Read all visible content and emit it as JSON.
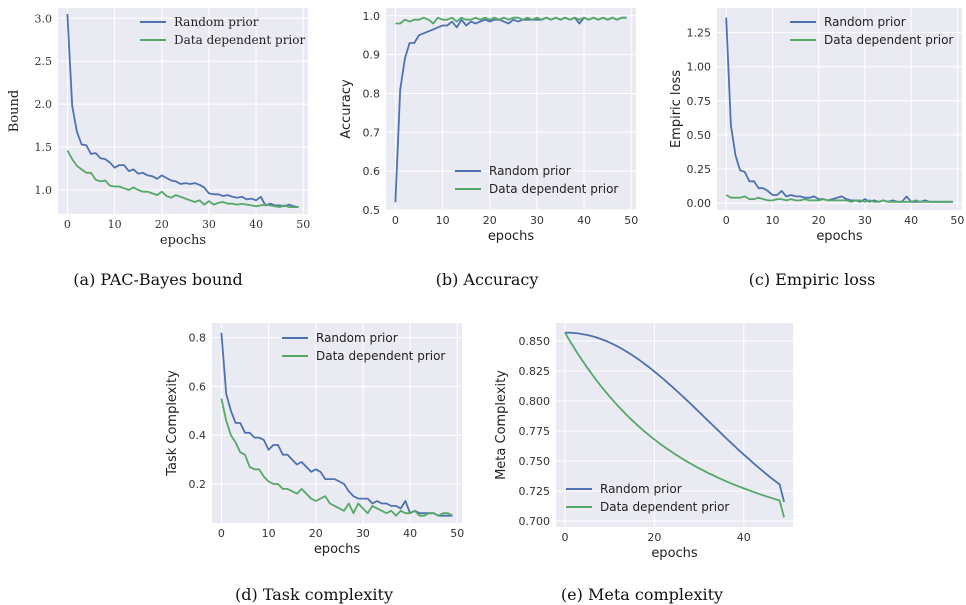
{
  "colors": {
    "random": "#4c72b0",
    "data_dependent": "#55a868",
    "panel_bg": "#eaeaf2",
    "grid": "#ffffff"
  },
  "chart_data": [
    {
      "id": "a",
      "type": "line",
      "caption": "(a) PAC-Bayes bound",
      "xlabel": "epochs",
      "ylabel": "Bound",
      "xlim": [
        -2,
        51
      ],
      "ylim": [
        0.72,
        3.12
      ],
      "xticks": [
        0,
        10,
        20,
        30,
        40,
        50
      ],
      "yticks": [
        1.0,
        1.5,
        2.0,
        2.5,
        3.0
      ],
      "ytick_labels": [
        "1.0",
        "1.5",
        "2.0",
        "2.5",
        "3.0"
      ],
      "legend": "upper-right",
      "series": [
        {
          "name": "Random prior",
          "color_key": "random",
          "values": [
            3.05,
            1.98,
            1.68,
            1.53,
            1.52,
            1.42,
            1.43,
            1.37,
            1.36,
            1.32,
            1.26,
            1.29,
            1.29,
            1.22,
            1.24,
            1.19,
            1.2,
            1.17,
            1.16,
            1.13,
            1.17,
            1.14,
            1.11,
            1.1,
            1.07,
            1.08,
            1.07,
            1.08,
            1.06,
            1.03,
            0.96,
            0.95,
            0.95,
            0.93,
            0.94,
            0.92,
            0.91,
            0.92,
            0.89,
            0.9,
            0.88,
            0.92,
            0.82,
            0.84,
            0.82,
            0.82,
            0.81,
            0.83,
            0.81,
            0.8
          ]
        },
        {
          "name": "Data dependent prior",
          "color_key": "data_dependent",
          "values": [
            1.46,
            1.36,
            1.28,
            1.24,
            1.2,
            1.2,
            1.12,
            1.1,
            1.11,
            1.05,
            1.04,
            1.04,
            1.02,
            1.0,
            1.03,
            1.0,
            0.98,
            0.98,
            0.96,
            0.94,
            0.98,
            0.93,
            0.91,
            0.94,
            0.92,
            0.9,
            0.88,
            0.86,
            0.88,
            0.83,
            0.87,
            0.83,
            0.85,
            0.86,
            0.84,
            0.84,
            0.83,
            0.84,
            0.83,
            0.82,
            0.81,
            0.82,
            0.83,
            0.82,
            0.81,
            0.8,
            0.82,
            0.8,
            0.8,
            0.8
          ]
        }
      ]
    },
    {
      "id": "b",
      "type": "line",
      "caption": "(b) Accuracy",
      "xlabel": "epochs",
      "ylabel": "Accuracy",
      "xlim": [
        -2,
        51
      ],
      "ylim": [
        0.5,
        1.02
      ],
      "xticks": [
        0,
        10,
        20,
        30,
        40,
        50
      ],
      "yticks": [
        0.5,
        0.6,
        0.7,
        0.8,
        0.9,
        1.0
      ],
      "ytick_labels": [
        "0.5",
        "0.6",
        "0.7",
        "0.8",
        "0.9",
        "1.0"
      ],
      "legend": "lower-right",
      "series": [
        {
          "name": "Random prior",
          "color_key": "random",
          "values": [
            0.52,
            0.81,
            0.89,
            0.93,
            0.93,
            0.95,
            0.955,
            0.96,
            0.965,
            0.97,
            0.975,
            0.975,
            0.985,
            0.97,
            0.99,
            0.975,
            0.985,
            0.98,
            0.985,
            0.99,
            0.985,
            0.99,
            0.99,
            0.985,
            0.98,
            0.99,
            0.985,
            0.99,
            0.99,
            0.99,
            0.99,
            0.99,
            0.995,
            0.99,
            0.995,
            0.99,
            0.995,
            0.99,
            0.995,
            0.98,
            0.995,
            0.99,
            0.995,
            0.99,
            0.995,
            0.99,
            0.995,
            0.99,
            0.995,
            0.995
          ]
        },
        {
          "name": "Data dependent prior",
          "color_key": "data_dependent",
          "values": [
            0.98,
            0.98,
            0.99,
            0.985,
            0.99,
            0.99,
            0.995,
            0.99,
            0.98,
            0.995,
            0.99,
            0.99,
            0.995,
            0.985,
            0.995,
            0.99,
            0.99,
            0.995,
            0.99,
            0.995,
            0.99,
            0.995,
            0.99,
            0.995,
            0.99,
            0.995,
            0.995,
            0.99,
            0.995,
            0.99,
            0.995,
            0.99,
            0.995,
            0.99,
            0.995,
            0.99,
            0.995,
            0.99,
            0.995,
            0.99,
            0.995,
            0.99,
            0.995,
            0.99,
            0.995,
            0.99,
            0.995,
            0.99,
            0.995,
            0.995
          ]
        }
      ]
    },
    {
      "id": "c",
      "type": "line",
      "caption": "(c) Empiric loss",
      "xlabel": "epochs",
      "ylabel": "Empiric loss",
      "xlim": [
        -2,
        51
      ],
      "ylim": [
        -0.05,
        1.43
      ],
      "xticks": [
        0,
        10,
        20,
        30,
        40,
        50
      ],
      "yticks": [
        0.0,
        0.25,
        0.5,
        0.75,
        1.0,
        1.25
      ],
      "ytick_labels": [
        "0.00",
        "0.25",
        "0.50",
        "0.75",
        "1.00",
        "1.25"
      ],
      "legend": "upper-right",
      "series": [
        {
          "name": "Random prior",
          "color_key": "random",
          "values": [
            1.36,
            0.57,
            0.35,
            0.24,
            0.23,
            0.16,
            0.16,
            0.11,
            0.11,
            0.09,
            0.06,
            0.06,
            0.09,
            0.05,
            0.06,
            0.05,
            0.05,
            0.04,
            0.04,
            0.05,
            0.03,
            0.03,
            0.02,
            0.03,
            0.04,
            0.05,
            0.03,
            0.02,
            0.02,
            0.01,
            0.03,
            0.01,
            0.02,
            0.01,
            0.02,
            0.01,
            0.02,
            0.01,
            0.01,
            0.05,
            0.01,
            0.01,
            0.01,
            0.02,
            0.01,
            0.01,
            0.01,
            0.01,
            0.01,
            0.01
          ]
        },
        {
          "name": "Data dependent prior",
          "color_key": "data_dependent",
          "values": [
            0.06,
            0.04,
            0.04,
            0.04,
            0.05,
            0.03,
            0.03,
            0.04,
            0.03,
            0.02,
            0.02,
            0.03,
            0.03,
            0.02,
            0.03,
            0.02,
            0.02,
            0.03,
            0.02,
            0.02,
            0.02,
            0.03,
            0.02,
            0.02,
            0.02,
            0.02,
            0.02,
            0.01,
            0.02,
            0.02,
            0.01,
            0.02,
            0.01,
            0.01,
            0.02,
            0.01,
            0.01,
            0.01,
            0.01,
            0.01,
            0.01,
            0.02,
            0.01,
            0.01,
            0.01,
            0.01,
            0.01,
            0.01,
            0.01,
            0.01
          ]
        }
      ]
    },
    {
      "id": "d",
      "type": "line",
      "caption": "(d) Task complexity",
      "xlabel": "epochs",
      "ylabel": "Task Complexity",
      "xlim": [
        -2,
        51
      ],
      "ylim": [
        0.04,
        0.86
      ],
      "xticks": [
        0,
        10,
        20,
        30,
        40,
        50
      ],
      "yticks": [
        0.2,
        0.4,
        0.6,
        0.8
      ],
      "ytick_labels": [
        "0.2",
        "0.4",
        "0.6",
        "0.8"
      ],
      "legend": "upper-right",
      "series": [
        {
          "name": "Random prior",
          "color_key": "random",
          "values": [
            0.82,
            0.57,
            0.5,
            0.45,
            0.45,
            0.41,
            0.41,
            0.39,
            0.39,
            0.38,
            0.34,
            0.36,
            0.36,
            0.32,
            0.32,
            0.3,
            0.28,
            0.29,
            0.27,
            0.25,
            0.26,
            0.25,
            0.22,
            0.22,
            0.22,
            0.21,
            0.2,
            0.17,
            0.15,
            0.14,
            0.14,
            0.14,
            0.12,
            0.13,
            0.12,
            0.12,
            0.11,
            0.11,
            0.1,
            0.13,
            0.08,
            0.09,
            0.08,
            0.08,
            0.08,
            0.08,
            0.07,
            0.07,
            0.07,
            0.07
          ]
        },
        {
          "name": "Data dependent prior",
          "color_key": "data_dependent",
          "values": [
            0.55,
            0.46,
            0.4,
            0.37,
            0.33,
            0.32,
            0.27,
            0.26,
            0.26,
            0.23,
            0.21,
            0.2,
            0.2,
            0.18,
            0.18,
            0.17,
            0.16,
            0.18,
            0.16,
            0.14,
            0.13,
            0.14,
            0.15,
            0.12,
            0.11,
            0.1,
            0.09,
            0.12,
            0.08,
            0.12,
            0.1,
            0.08,
            0.11,
            0.1,
            0.09,
            0.08,
            0.09,
            0.07,
            0.09,
            0.08,
            0.08,
            0.09,
            0.07,
            0.07,
            0.08,
            0.08,
            0.07,
            0.08,
            0.08,
            0.07
          ]
        }
      ]
    },
    {
      "id": "e",
      "type": "line",
      "caption": "(e) Meta complexity",
      "xlabel": "epochs",
      "ylabel": "Meta Complexity",
      "xlim": [
        -2,
        51
      ],
      "ylim": [
        0.695,
        0.865
      ],
      "xticks": [
        0,
        20,
        40
      ],
      "yticks": [
        0.7,
        0.725,
        0.75,
        0.775,
        0.8,
        0.825,
        0.85
      ],
      "ytick_labels": [
        "0.700",
        "0.725",
        "0.750",
        "0.775",
        "0.800",
        "0.825",
        "0.850"
      ],
      "legend": "lower-left",
      "series": [
        {
          "name": "Random prior",
          "color_key": "random",
          "values": [
            0.857,
            0.8569,
            0.8567,
            0.8563,
            0.8557,
            0.855,
            0.8541,
            0.853,
            0.8517,
            0.8503,
            0.8487,
            0.8469,
            0.845,
            0.8429,
            0.8407,
            0.8383,
            0.8358,
            0.8332,
            0.8304,
            0.8276,
            0.8246,
            0.8215,
            0.8184,
            0.8151,
            0.8118,
            0.8084,
            0.805,
            0.8015,
            0.798,
            0.7944,
            0.7908,
            0.7872,
            0.7836,
            0.78,
            0.7764,
            0.7728,
            0.7692,
            0.7657,
            0.7622,
            0.7587,
            0.7553,
            0.752,
            0.7487,
            0.7455,
            0.7423,
            0.7392,
            0.7362,
            0.7333,
            0.7305,
            0.716
          ]
        },
        {
          "name": "Data dependent prior",
          "color_key": "data_dependent",
          "values": [
            0.857,
            0.8507,
            0.8446,
            0.8387,
            0.8331,
            0.8277,
            0.8225,
            0.8175,
            0.8127,
            0.8081,
            0.8037,
            0.7994,
            0.7953,
            0.7914,
            0.7876,
            0.784,
            0.7805,
            0.7772,
            0.774,
            0.7709,
            0.768,
            0.7651,
            0.7624,
            0.7598,
            0.7573,
            0.7548,
            0.7525,
            0.7502,
            0.748,
            0.7459,
            0.7439,
            0.742,
            0.7401,
            0.7383,
            0.7365,
            0.7348,
            0.7332,
            0.7316,
            0.7301,
            0.7286,
            0.7272,
            0.7258,
            0.7244,
            0.7231,
            0.7218,
            0.7206,
            0.7194,
            0.7182,
            0.7171,
            0.703
          ]
        }
      ]
    }
  ]
}
